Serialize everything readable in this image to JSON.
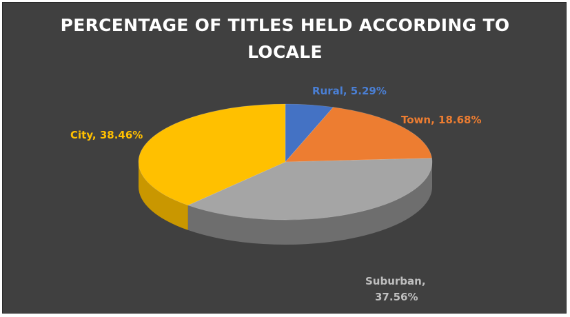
{
  "chart_data": {
    "type": "pie",
    "title_lines": [
      "PERCENTAGE  OF TITLES HELD ACCORDING TO",
      "LOCALE"
    ],
    "categories": [
      "Rural",
      "Town",
      "Suburban",
      "City"
    ],
    "values": [
      5.29,
      18.68,
      37.56,
      38.46
    ],
    "value_labels": [
      "5.29%",
      "18.68%",
      "37.56%",
      "38.46%"
    ],
    "colors": [
      "#4472c4",
      "#ed7d31",
      "#a5a5a5",
      "#ffc000"
    ],
    "side_colors": [
      "#2f5597",
      "#c55a11",
      "#6e6e6e",
      "#c99700"
    ],
    "label_colors": [
      "#4a7fd4",
      "#ed7d31",
      "#bfbfbf",
      "#ffc000"
    ],
    "style": "3d",
    "legend": "none",
    "start_angle_deg": 0,
    "direction": "clockwise"
  },
  "labels": {
    "rural": "Rural,  5.29%",
    "town": "Town, 18.68%",
    "suburban_line1": "Suburban,",
    "suburban_line2": "37.56%",
    "city": "City, 38.46%"
  }
}
